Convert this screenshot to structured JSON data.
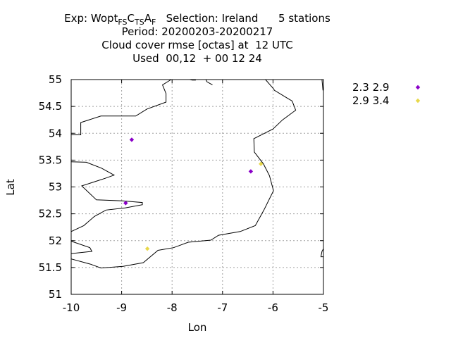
{
  "title": {
    "exp_prefix": "Exp: Wopt",
    "exp_sub1": "FS",
    "exp_mid1": "C",
    "exp_sub2": "TS",
    "exp_mid2": "A",
    "exp_sub3": "F",
    "selection": "   Selection: Ireland      5 stations",
    "line2": "Period: 20200203-20200217",
    "line3": "Cloud cover rmse [octas] at  12 UTC",
    "line4": "Used  00,12  + 00 12 24"
  },
  "chart_data": {
    "type": "scatter",
    "xlabel": "Lon",
    "ylabel": "Lat",
    "xlim": [
      -10,
      -5
    ],
    "ylim": [
      51,
      55
    ],
    "xticks": [
      -10,
      -9,
      -8,
      -7,
      -6,
      -5
    ],
    "yticks": [
      51,
      51.5,
      52,
      52.5,
      53,
      53.5,
      54,
      54.5,
      55
    ],
    "grid": true,
    "legend_position": "right",
    "series": [
      {
        "name": "2.3 2.9",
        "color": "#8a00c8",
        "marker": "diamond",
        "points": [
          {
            "lon": -8.8,
            "lat": 53.88
          },
          {
            "lon": -8.92,
            "lat": 52.7
          },
          {
            "lon": -6.44,
            "lat": 53.29
          }
        ]
      },
      {
        "name": "2.9 3.4",
        "color": "#e8d84a",
        "marker": "diamond",
        "points": [
          {
            "lon": -6.24,
            "lat": 53.43
          },
          {
            "lon": -8.49,
            "lat": 51.85
          }
        ]
      }
    ],
    "coastline": [
      [
        [
          -10.0,
          53.97
        ],
        [
          -9.81,
          53.97
        ],
        [
          -9.81,
          54.2
        ],
        [
          -9.41,
          54.32
        ],
        [
          -8.72,
          54.32
        ],
        [
          -8.5,
          54.45
        ],
        [
          -8.12,
          54.58
        ],
        [
          -8.12,
          54.74
        ],
        [
          -8.19,
          54.9
        ],
        [
          -8.02,
          55.0
        ]
      ],
      [
        [
          -7.65,
          55.0
        ],
        [
          -7.6,
          54.99
        ],
        [
          -7.53,
          54.99
        ]
      ],
      [
        [
          -7.33,
          55.0
        ],
        [
          -7.31,
          54.96
        ],
        [
          -7.2,
          54.9
        ]
      ],
      [
        [
          -6.15,
          55.0
        ],
        [
          -5.99,
          54.83
        ],
        [
          -5.97,
          54.8
        ],
        [
          -5.71,
          54.65
        ],
        [
          -5.62,
          54.6
        ],
        [
          -5.55,
          54.43
        ],
        [
          -5.81,
          54.25
        ],
        [
          -6.0,
          54.08
        ],
        [
          -6.38,
          53.9
        ],
        [
          -6.37,
          53.65
        ],
        [
          -6.19,
          53.43
        ],
        [
          -6.07,
          53.21
        ],
        [
          -5.99,
          52.93
        ],
        [
          -6.18,
          52.57
        ],
        [
          -6.35,
          52.28
        ],
        [
          -6.65,
          52.17
        ],
        [
          -7.08,
          52.1
        ],
        [
          -7.23,
          52.01
        ],
        [
          -7.68,
          51.97
        ],
        [
          -7.97,
          51.87
        ],
        [
          -8.28,
          51.82
        ],
        [
          -8.57,
          51.59
        ],
        [
          -8.97,
          51.52
        ],
        [
          -9.41,
          51.49
        ],
        [
          -9.61,
          51.56
        ],
        [
          -10.0,
          51.66
        ]
      ],
      [
        [
          -10.0,
          51.76
        ],
        [
          -9.59,
          51.8
        ],
        [
          -9.63,
          51.87
        ],
        [
          -10.0,
          51.99
        ]
      ],
      [
        [
          -10.0,
          52.17
        ],
        [
          -9.75,
          52.28
        ],
        [
          -9.54,
          52.45
        ],
        [
          -9.31,
          52.57
        ],
        [
          -8.93,
          52.61
        ],
        [
          -8.59,
          52.67
        ],
        [
          -8.59,
          52.71
        ],
        [
          -8.98,
          52.74
        ],
        [
          -9.5,
          52.76
        ],
        [
          -9.79,
          53.02
        ],
        [
          -9.33,
          53.16
        ],
        [
          -9.15,
          53.22
        ],
        [
          -9.4,
          53.35
        ],
        [
          -9.7,
          53.46
        ],
        [
          -10.0,
          53.47
        ]
      ],
      [
        [
          -5.03,
          55.0
        ],
        [
          -5.01,
          54.8
        ]
      ],
      [
        [
          -5.0,
          51.7
        ],
        [
          -5.05,
          51.7
        ],
        [
          -5.03,
          51.8
        ],
        [
          -5.0,
          51.85
        ]
      ]
    ]
  }
}
